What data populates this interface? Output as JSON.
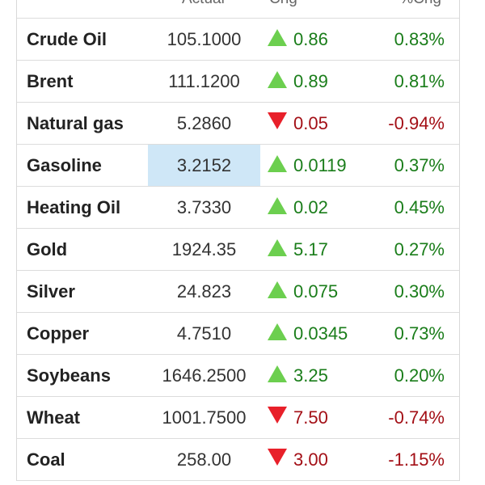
{
  "header": {
    "actual_label": "Actual",
    "chg_label": "Chg",
    "pct_label": "%Chg"
  },
  "colors": {
    "up_arrow": "#6ccf4f",
    "down_arrow": "#e8202a",
    "positive_text": "#1a7d1a",
    "negative_text": "#a30f16",
    "highlight_cell": "#cfe7f7"
  },
  "rows": [
    {
      "name": "Crude Oil",
      "actual": "105.1000",
      "direction": "up",
      "chg": "0.86",
      "pct": "0.83%"
    },
    {
      "name": "Brent",
      "actual": "111.1200",
      "direction": "up",
      "chg": "0.89",
      "pct": "0.81%"
    },
    {
      "name": "Natural gas",
      "actual": "5.2860",
      "direction": "down",
      "chg": "0.05",
      "pct": "-0.94%"
    },
    {
      "name": "Gasoline",
      "actual": "3.2152",
      "direction": "up",
      "chg": "0.0119",
      "pct": "0.37%",
      "highlighted": true
    },
    {
      "name": "Heating Oil",
      "actual": "3.7330",
      "direction": "up",
      "chg": "0.02",
      "pct": "0.45%"
    },
    {
      "name": "Gold",
      "actual": "1924.35",
      "direction": "up",
      "chg": "5.17",
      "pct": "0.27%"
    },
    {
      "name": "Silver",
      "actual": "24.823",
      "direction": "up",
      "chg": "0.075",
      "pct": "0.30%"
    },
    {
      "name": "Copper",
      "actual": "4.7510",
      "direction": "up",
      "chg": "0.0345",
      "pct": "0.73%"
    },
    {
      "name": "Soybeans",
      "actual": "1646.2500",
      "direction": "up",
      "chg": "3.25",
      "pct": "0.20%"
    },
    {
      "name": "Wheat",
      "actual": "1001.7500",
      "direction": "down",
      "chg": "7.50",
      "pct": "-0.74%"
    },
    {
      "name": "Coal",
      "actual": "258.00",
      "direction": "down",
      "chg": "3.00",
      "pct": "-1.15%"
    }
  ]
}
